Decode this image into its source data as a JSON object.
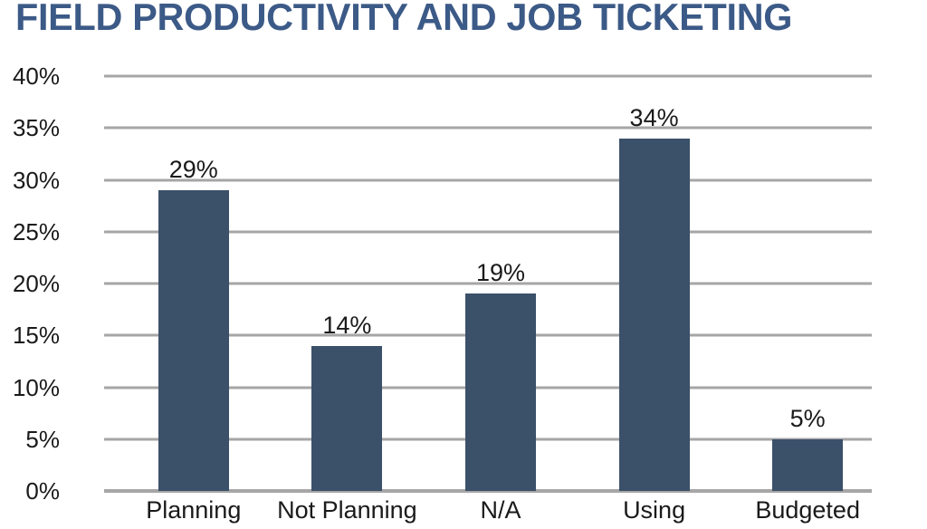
{
  "title": "FIELD PRODUCTIVITY AND JOB TICKETING",
  "colors": {
    "title_text": "#3c5a87",
    "bar_fill": "#3b5069",
    "gridline": "#a6a6a6",
    "axis_text": "#1a1a1a",
    "background": "#ffffff"
  },
  "chart_data": {
    "type": "bar",
    "title": "FIELD PRODUCTIVITY AND JOB TICKETING",
    "categories": [
      "Planning",
      "Not Planning",
      "N/A",
      "Using",
      "Budgeted"
    ],
    "values": [
      29,
      14,
      19,
      34,
      5
    ],
    "data_labels": [
      "29%",
      "14%",
      "19%",
      "34%",
      "5%"
    ],
    "xlabel": "",
    "ylabel": "",
    "ylim": [
      0,
      40
    ],
    "ytick_step": 5,
    "ytick_labels": [
      "0%",
      "5%",
      "10%",
      "15%",
      "20%",
      "25%",
      "30%",
      "35%",
      "40%"
    ],
    "grid": true,
    "legend": false,
    "bar_color": "#3b5069"
  }
}
